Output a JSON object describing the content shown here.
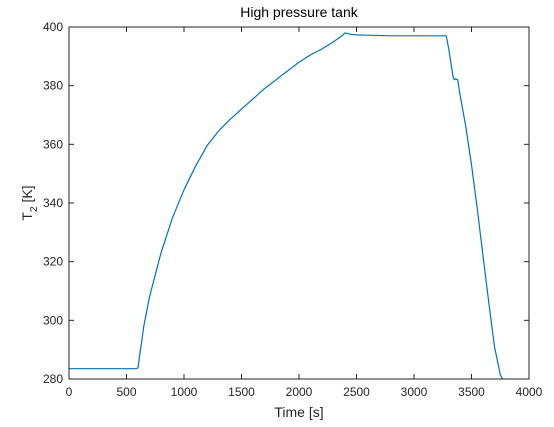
{
  "chart_data": {
    "type": "line",
    "title": "High pressure tank",
    "xlabel": "Time [s]",
    "ylabel_main": "T",
    "ylabel_sub": "2",
    "ylabel_unit": " [K]",
    "xlim": [
      0,
      4000
    ],
    "ylim": [
      280,
      400
    ],
    "xticks": [
      0,
      500,
      1000,
      1500,
      2000,
      2500,
      3000,
      3500,
      4000
    ],
    "yticks": [
      280,
      300,
      320,
      340,
      360,
      380,
      400
    ],
    "grid": false,
    "series": [
      {
        "color": "#0072BD",
        "x": [
          0,
          580,
          600,
          615,
          650,
          700,
          800,
          900,
          1000,
          1100,
          1200,
          1300,
          1400,
          1500,
          1600,
          1700,
          1800,
          1900,
          2000,
          2100,
          2200,
          2300,
          2380,
          2400,
          2450,
          2500,
          2600,
          2800,
          3000,
          3200,
          3280,
          3300,
          3320,
          3340,
          3350,
          3360,
          3380,
          3400,
          3450,
          3500,
          3550,
          3600,
          3650,
          3700,
          3750,
          3770
        ],
        "y": [
          283.5,
          283.5,
          283.8,
          288,
          298,
          308,
          323,
          335,
          344.5,
          352.5,
          359.5,
          364.5,
          368.5,
          372,
          375.5,
          379,
          382,
          385,
          388,
          390.5,
          392.5,
          395,
          397.2,
          398,
          397.5,
          397.3,
          397.2,
          397,
          397,
          397,
          397,
          393,
          388,
          383,
          382,
          382.3,
          382,
          377,
          366,
          353,
          338,
          322,
          306,
          291,
          281.5,
          280
        ]
      }
    ]
  }
}
